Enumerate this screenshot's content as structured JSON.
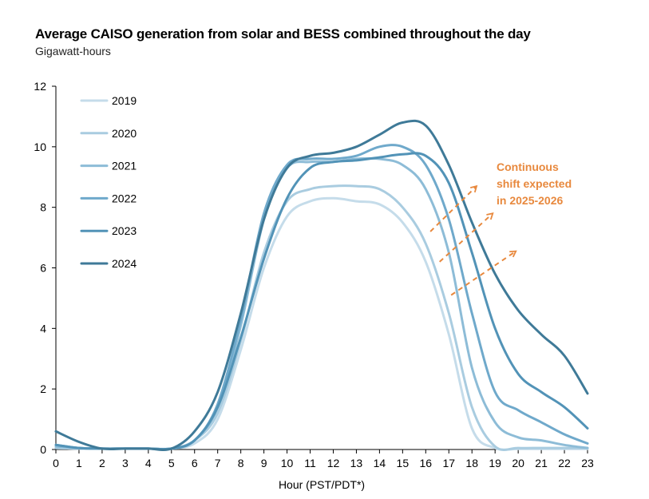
{
  "chart_data": {
    "type": "line",
    "title": "Average CAISO generation from solar and BESS combined throughout the day",
    "subtitle": "Gigawatt-hours",
    "xlabel": "Hour (PST/PDT*)",
    "ylabel": "",
    "x": [
      0,
      1,
      2,
      3,
      4,
      5,
      6,
      7,
      8,
      9,
      10,
      11,
      12,
      13,
      14,
      15,
      16,
      17,
      18,
      19,
      20,
      21,
      22,
      23
    ],
    "xlim": [
      0,
      23
    ],
    "ylim": [
      0,
      12
    ],
    "yticks": [
      0,
      2,
      4,
      6,
      8,
      10,
      12
    ],
    "xticks": [
      0,
      1,
      2,
      3,
      4,
      5,
      6,
      7,
      8,
      9,
      10,
      11,
      12,
      13,
      14,
      15,
      16,
      17,
      18,
      19,
      20,
      21,
      22,
      23
    ],
    "legend_position": "top-left",
    "grid": false,
    "series": [
      {
        "name": "2019",
        "color": "#C5DCEA",
        "values": [
          0.05,
          0.03,
          0.03,
          0.03,
          0.03,
          0.03,
          0.2,
          1.0,
          3.3,
          6.0,
          7.7,
          8.2,
          8.3,
          8.2,
          8.1,
          7.5,
          6.2,
          3.8,
          0.7,
          0.05,
          0.02,
          0.02,
          0.02,
          0.02
        ]
      },
      {
        "name": "2020",
        "color": "#A9CCE0",
        "values": [
          0.05,
          0.03,
          0.03,
          0.03,
          0.03,
          0.03,
          0.3,
          1.2,
          3.6,
          6.5,
          8.2,
          8.6,
          8.7,
          8.7,
          8.6,
          8.0,
          6.8,
          4.5,
          1.4,
          0.1,
          0.05,
          0.05,
          0.05,
          0.05
        ]
      },
      {
        "name": "2021",
        "color": "#8DBCD7",
        "values": [
          0.1,
          0.05,
          0.03,
          0.03,
          0.03,
          0.03,
          0.3,
          1.4,
          4.1,
          7.6,
          9.3,
          9.5,
          9.5,
          9.6,
          9.6,
          9.4,
          8.6,
          6.5,
          2.7,
          0.9,
          0.4,
          0.3,
          0.15,
          0.05
        ]
      },
      {
        "name": "2022",
        "color": "#6FA9CB",
        "values": [
          0.15,
          0.05,
          0.03,
          0.03,
          0.03,
          0.03,
          0.3,
          1.5,
          4.3,
          7.8,
          9.4,
          9.6,
          9.6,
          9.7,
          10.0,
          10.0,
          9.4,
          7.6,
          4.5,
          1.9,
          1.3,
          0.9,
          0.5,
          0.2
        ]
      },
      {
        "name": "2023",
        "color": "#5293B7",
        "values": [
          0.15,
          0.05,
          0.03,
          0.03,
          0.03,
          0.03,
          0.3,
          1.4,
          3.7,
          6.3,
          8.3,
          9.3,
          9.5,
          9.55,
          9.65,
          9.75,
          9.7,
          8.8,
          6.5,
          4.0,
          2.5,
          1.9,
          1.4,
          0.7
        ]
      },
      {
        "name": "2024",
        "color": "#3F7A98",
        "values": [
          0.6,
          0.25,
          0.03,
          0.03,
          0.03,
          0.03,
          0.6,
          1.9,
          4.5,
          7.6,
          9.3,
          9.7,
          9.8,
          10.0,
          10.4,
          10.8,
          10.7,
          9.4,
          7.5,
          5.8,
          4.6,
          3.8,
          3.1,
          1.85
        ]
      }
    ],
    "annotation": {
      "lines": [
        "Continuous",
        "shift expected",
        "in 2025-2026"
      ],
      "color": "#E8893E"
    }
  }
}
